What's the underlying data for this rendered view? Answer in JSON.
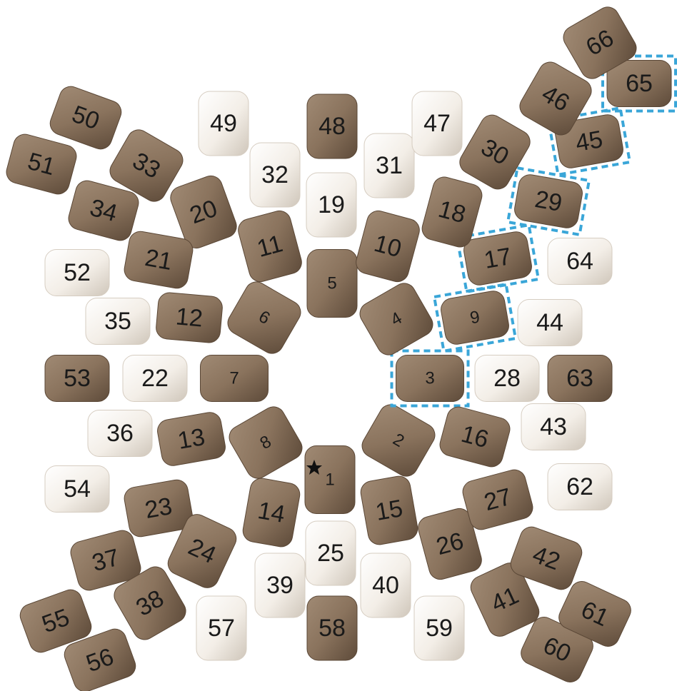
{
  "nodes": [
    {
      "label": "1"
    },
    {
      "label": "2"
    },
    {
      "label": "3"
    },
    {
      "label": "4"
    },
    {
      "label": "5"
    },
    {
      "label": "6"
    },
    {
      "label": "7"
    },
    {
      "label": "8"
    },
    {
      "label": "9"
    },
    {
      "label": "10"
    },
    {
      "label": "11"
    },
    {
      "label": "12"
    },
    {
      "label": "13"
    },
    {
      "label": "14"
    },
    {
      "label": "15"
    },
    {
      "label": "16"
    },
    {
      "label": "17"
    },
    {
      "label": "18"
    },
    {
      "label": "19"
    },
    {
      "label": "20"
    },
    {
      "label": "21"
    },
    {
      "label": "22"
    },
    {
      "label": "23"
    },
    {
      "label": "24"
    },
    {
      "label": "25"
    },
    {
      "label": "26"
    },
    {
      "label": "27"
    },
    {
      "label": "28"
    },
    {
      "label": "29"
    },
    {
      "label": "30"
    },
    {
      "label": "31"
    },
    {
      "label": "32"
    },
    {
      "label": "33"
    },
    {
      "label": "34"
    },
    {
      "label": "35"
    },
    {
      "label": "36"
    },
    {
      "label": "37"
    },
    {
      "label": "38"
    },
    {
      "label": "39"
    },
    {
      "label": "40"
    },
    {
      "label": "41"
    },
    {
      "label": "42"
    },
    {
      "label": "43"
    },
    {
      "label": "44"
    },
    {
      "label": "45"
    },
    {
      "label": "46"
    },
    {
      "label": "47"
    },
    {
      "label": "48"
    },
    {
      "label": "49"
    },
    {
      "label": "50"
    },
    {
      "label": "51"
    },
    {
      "label": "52"
    },
    {
      "label": "53"
    },
    {
      "label": "54"
    },
    {
      "label": "55"
    },
    {
      "label": "56"
    },
    {
      "label": "57"
    },
    {
      "label": "58"
    },
    {
      "label": "59"
    },
    {
      "label": "60"
    },
    {
      "label": "61"
    },
    {
      "label": "62"
    },
    {
      "label": "63"
    },
    {
      "label": "64"
    },
    {
      "label": "65"
    },
    {
      "label": "66"
    }
  ]
}
